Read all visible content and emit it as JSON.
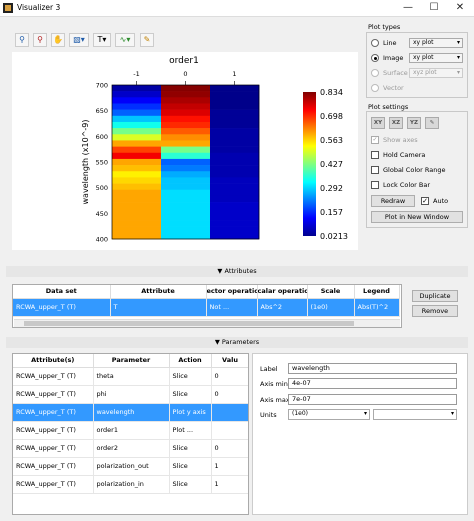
{
  "window": {
    "title": "Visualizer 3",
    "minimize": "—",
    "maximize": "☐",
    "close": "✕"
  },
  "toolbar": {
    "zoom": "⚲",
    "zoom_alt": "⚲",
    "pan": "✋",
    "colormap": "▧▾",
    "text": "T▾",
    "marker": "∿▾",
    "pen": "✎"
  },
  "plot": {
    "title": "order1",
    "ylabel": "wavelength (x10^-9)",
    "colorbar_labels": [
      "0.834",
      "0.698",
      "0.563",
      "0.427",
      "0.292",
      "0.157",
      "0.0213"
    ]
  },
  "chart_data": {
    "type": "heatmap",
    "title": "order1",
    "xlabel": "",
    "ylabel": "wavelength (x10^-9)",
    "x_categories": [
      "-1",
      "0",
      "1"
    ],
    "y_ticks": [
      "700",
      "650",
      "600",
      "550",
      "500",
      "450",
      "400"
    ],
    "ylim": [
      400,
      700
    ],
    "color_range": [
      0.0213,
      0.834
    ],
    "columns": [
      {
        "x": "-1",
        "values_top_to_bottom": [
          0.05,
          0.08,
          0.12,
          0.16,
          0.2,
          0.28,
          0.34,
          0.42,
          0.5,
          0.6,
          0.68,
          0.74,
          0.6,
          0.58,
          0.54,
          0.56,
          0.58,
          0.6,
          0.6,
          0.6,
          0.6,
          0.6,
          0.6,
          0.6,
          0.6
        ]
      },
      {
        "x": "0",
        "values_top_to_bottom": [
          0.83,
          0.82,
          0.8,
          0.78,
          0.76,
          0.72,
          0.7,
          0.66,
          0.62,
          0.6,
          0.42,
          0.36,
          0.2,
          0.22,
          0.26,
          0.28,
          0.28,
          0.3,
          0.3,
          0.3,
          0.3,
          0.3,
          0.3,
          0.3,
          0.3
        ]
      },
      {
        "x": "1",
        "values_top_to_bottom": [
          0.03,
          0.03,
          0.03,
          0.03,
          0.04,
          0.04,
          0.04,
          0.05,
          0.05,
          0.05,
          0.05,
          0.06,
          0.06,
          0.06,
          0.06,
          0.07,
          0.07,
          0.07,
          0.07,
          0.08,
          0.08,
          0.08,
          0.08,
          0.08,
          0.08
        ]
      }
    ]
  },
  "plot_types": {
    "title": "Plot types",
    "options": [
      {
        "label": "Line",
        "value": "xy plot"
      },
      {
        "label": "Image",
        "value": "xy plot"
      },
      {
        "label": "Surface",
        "value": "xyz plot"
      },
      {
        "label": "Vector",
        "value": ""
      }
    ]
  },
  "plot_settings": {
    "title": "Plot settings",
    "icons": [
      "XY",
      "XZ",
      "YZ",
      "✎"
    ],
    "show_axes": "Show axes",
    "hold_camera": "Hold Camera",
    "global_color_range": "Global Color Range",
    "lock_color_bar": "Lock Color Bar",
    "redraw": "Redraw",
    "auto": "Auto",
    "plot_new_window": "Plot in New Window"
  },
  "attributes": {
    "section": "▼ Attributes",
    "headers": [
      "Data set",
      "Attribute",
      "ector operatio",
      "calar operatio",
      "Scale",
      "Legend"
    ],
    "rows": [
      [
        "RCWA_upper_T (T)",
        "T",
        "Not ...",
        "Abs^2",
        "(1e0)",
        "Abs(T)^2"
      ]
    ],
    "duplicate": "Duplicate",
    "remove": "Remove"
  },
  "parameters": {
    "section": "▼ Parameters",
    "headers": [
      "Attribute(s)",
      "Parameter",
      "Action",
      "Valu"
    ],
    "rows": [
      [
        "RCWA_upper_T (T)",
        "theta",
        "Slice",
        "0"
      ],
      [
        "RCWA_upper_T (T)",
        "phi",
        "Slice",
        "0"
      ],
      [
        "RCWA_upper_T (T)",
        "wavelength",
        "Plot y axis",
        ""
      ],
      [
        "RCWA_upper_T (T)",
        "order1",
        "Plot ...",
        ""
      ],
      [
        "RCWA_upper_T (T)",
        "order2",
        "Slice",
        "0"
      ],
      [
        "RCWA_upper_T (T)",
        "polarization_out",
        "Slice",
        "1"
      ],
      [
        "RCWA_upper_T (T)",
        "polarization_in",
        "Slice",
        "1"
      ]
    ],
    "label_label": "Label",
    "label_value": "wavelength",
    "axis_min_label": "Axis min",
    "axis_min_value": "4e-07",
    "axis_max_label": "Axis max",
    "axis_max_value": "7e-07",
    "units_label": "Units",
    "units_value": "(1e0)"
  }
}
